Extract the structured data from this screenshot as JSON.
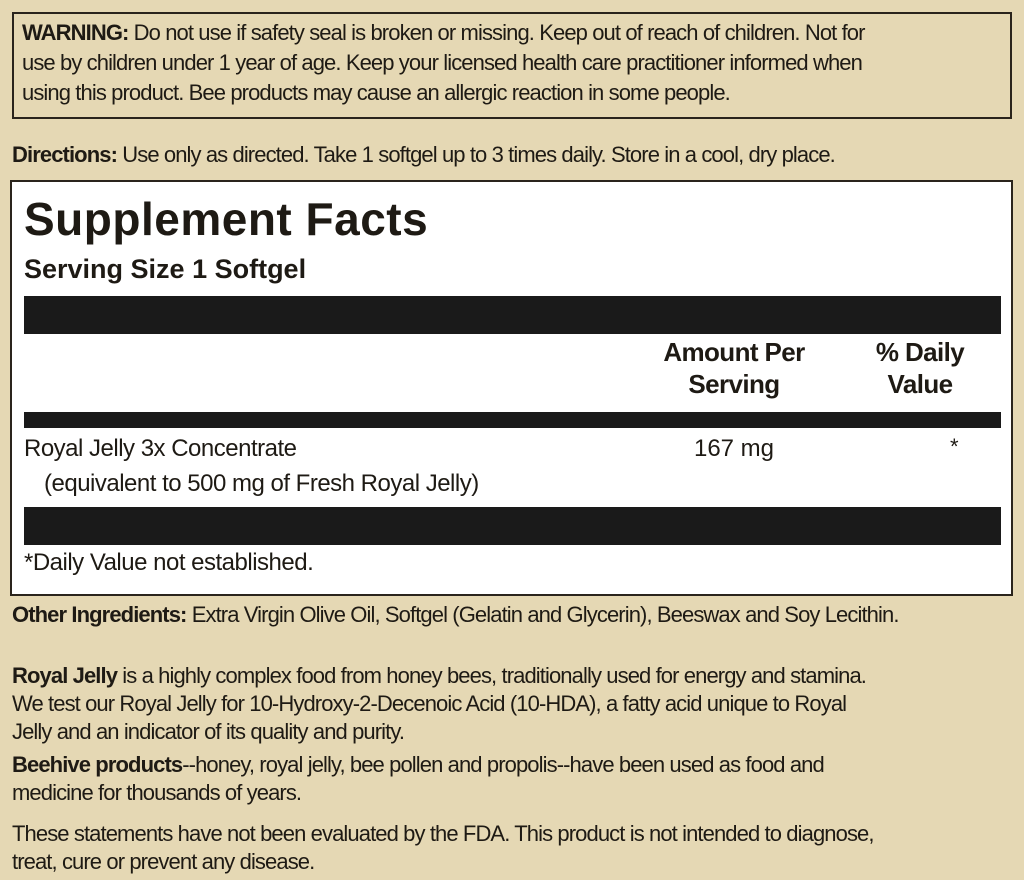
{
  "warning": {
    "label": "WARNING:",
    "lines": [
      "Do not use if safety seal is broken or missing.  Keep out of reach of children.  Not for",
      "use by children under 1 year of age.  Keep your licensed health care practitioner informed when",
      "using this product.  Bee products may cause an allergic reaction in some people."
    ]
  },
  "directions": {
    "label": "Directions:",
    "text": "Use only as directed.  Take 1 softgel up to 3 times daily.   Store in a cool, dry place."
  },
  "facts": {
    "title": "Supplement Facts",
    "serving_size": "Serving Size 1 Softgel",
    "col_amount": [
      "Amount Per",
      "Serving"
    ],
    "col_dv": [
      "% Daily",
      "Value"
    ],
    "rows": [
      {
        "name": "Royal Jelly 3x Concentrate",
        "sub": "(equivalent to 500 mg of Fresh Royal Jelly)",
        "amount": "167 mg",
        "dv": "*"
      }
    ],
    "footnote": "*Daily Value not established."
  },
  "other": {
    "label": "Other Ingredients:",
    "text": "Extra Virgin Olive Oil, Softgel (Gelatin and Glycerin), Beeswax and Soy Lecithin."
  },
  "royal": {
    "label": "Royal Jelly",
    "lines": [
      " is a highly complex food from honey bees, traditionally used for energy and stamina.",
      "We test our Royal Jelly for 10-Hydroxy-2-Decenoic Acid (10-HDA), a fatty acid unique to Royal",
      "Jelly and an indicator of its quality and purity."
    ]
  },
  "beehive": {
    "label": "Beehive products",
    "lines": [
      "--honey, royal jelly, bee pollen and propolis--have been used as food and",
      "medicine for thousands of years."
    ]
  },
  "fda": {
    "lines": [
      "These statements have not been evaluated by the FDA. This product is not intended to diagnose,",
      "treat, cure or prevent any disease."
    ]
  }
}
